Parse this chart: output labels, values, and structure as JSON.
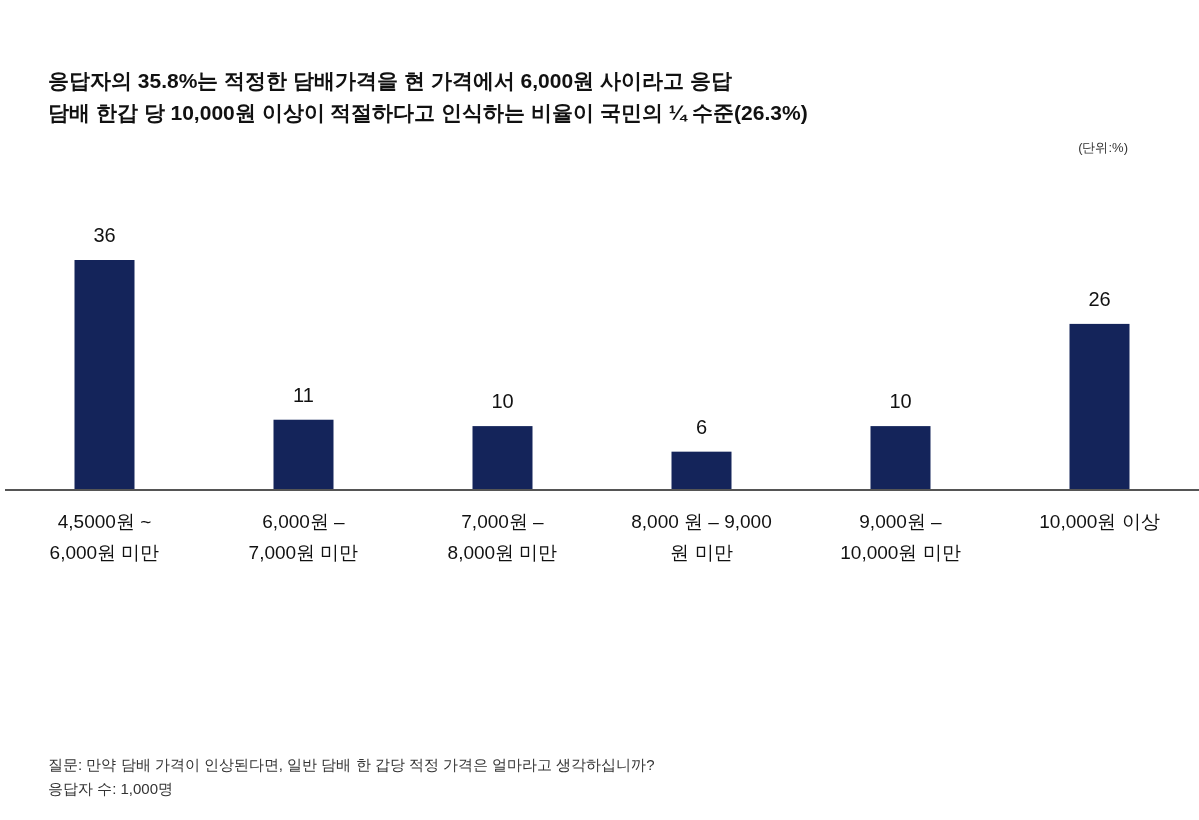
{
  "chart_data": {
    "type": "bar",
    "title": "응답자의 35.8%는 적정한 담배가격을 현 가격에서 6,000원 사이라고 응답",
    "subtitle": "담배 한갑 당 10,000원 이상이 적절하다고 인식하는 비율이 국민의 ¼ 수준(26.3%)",
    "categories": [
      "4,5000원 ~ 6,000원 미만",
      "6,000원 – 7,000원 미만",
      "7,000원 – 8,000원 미만",
      "8,000 원 – 9,000 원 미만",
      "9,000원 – 10,000원 미만",
      "10,000원 이상"
    ],
    "values": [
      36,
      11,
      10,
      6,
      10,
      26
    ],
    "color": "#14245a",
    "data_labels": true,
    "annotations": [
      "(단위:%)",
      "질문: 만약 담배 가격이 인상된다면, 일반 담배 한 갑당 적정 가격은 얼마라고 생각하십니까?",
      "응답자 수: 1,000명"
    ]
  }
}
